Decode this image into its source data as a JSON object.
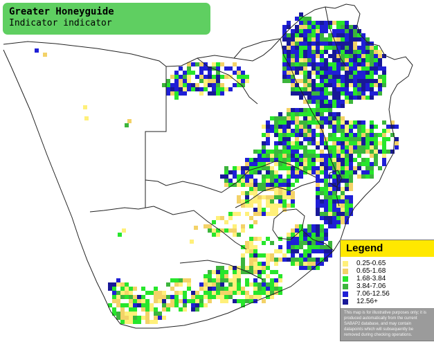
{
  "title": {
    "species": "Greater Honeyguide",
    "subtitle": "Indicator indicator"
  },
  "colors": {
    "title_box": "#5fcf61",
    "border_lines": "#222222",
    "legend_header": "#ffe800",
    "legend_panel": "#9b9b9b"
  },
  "legend": {
    "title": "Legend",
    "items": [
      {
        "label": "0.25-0.65",
        "color": "#fff07a"
      },
      {
        "label": "0.65-1.68",
        "color": "#f3d268"
      },
      {
        "label": "1.68-3.84",
        "color": "#27e62c"
      },
      {
        "label": "3.84-7.06",
        "color": "#3cb53c"
      },
      {
        "label": "7.06-12.56",
        "color": "#1f1fd6"
      },
      {
        "label": "12.56+",
        "color": "#181898"
      }
    ],
    "note": "This map is for illustrative purposes only; it is produced automatically from the current SABAP2 database, and may contain datapoints which will subsequently be removed during checking operations."
  }
}
